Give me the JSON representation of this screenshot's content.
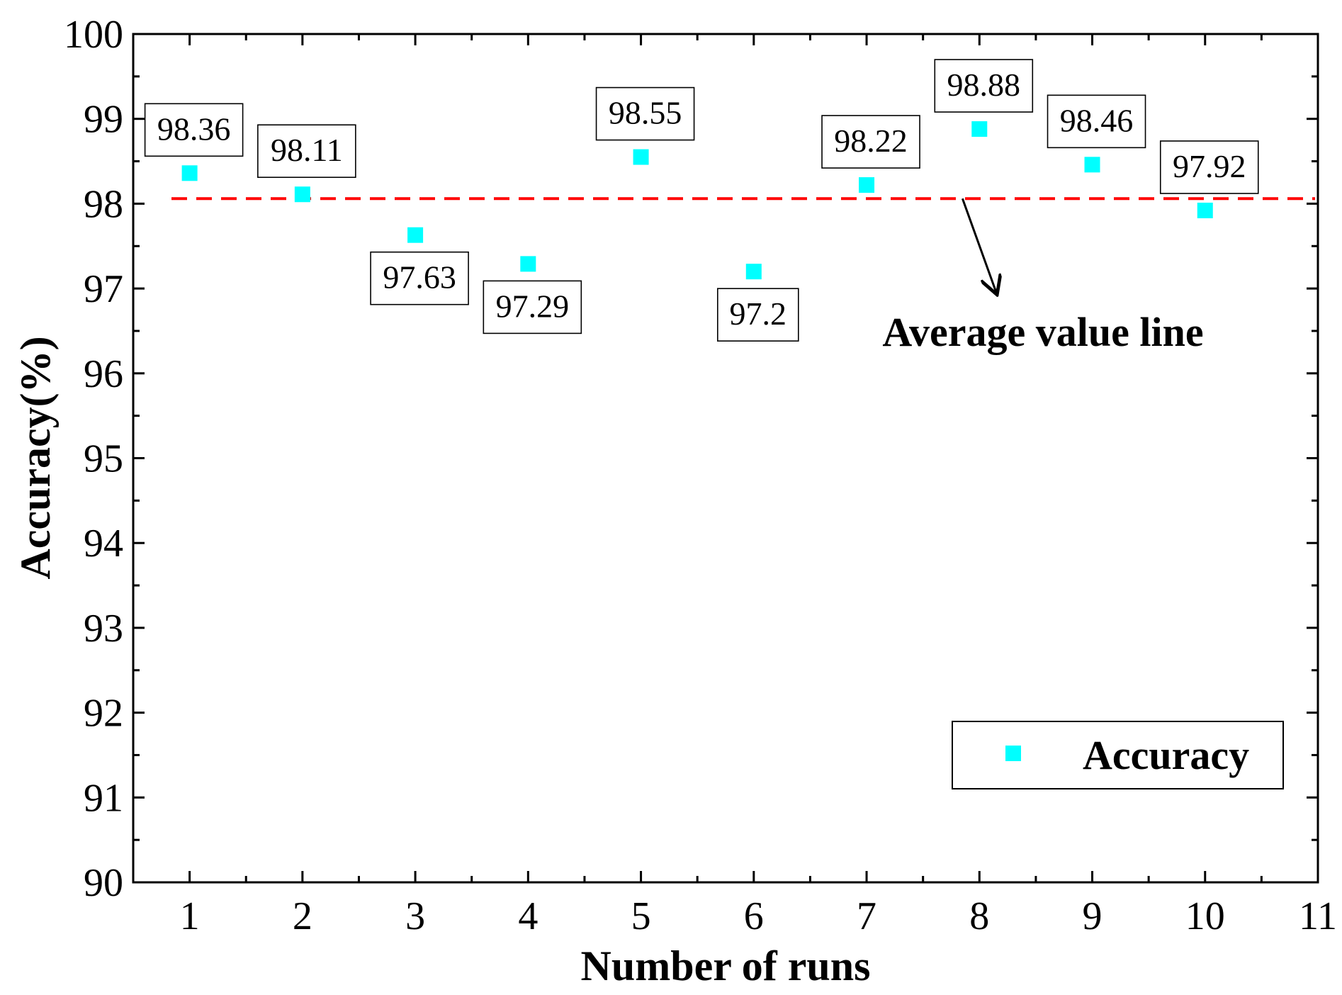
{
  "chart_data": {
    "type": "scatter",
    "title": "",
    "xlabel": "Number of runs",
    "ylabel": "Accuracy(%)",
    "xlim": [
      0.5,
      11
    ],
    "ylim": [
      90,
      100
    ],
    "xticks": [
      1,
      2,
      3,
      4,
      5,
      6,
      7,
      8,
      9,
      10,
      11
    ],
    "yticks": [
      90,
      91,
      92,
      93,
      94,
      95,
      96,
      97,
      98,
      99,
      100
    ],
    "grid": false,
    "series": [
      {
        "name": "Accuracy",
        "color": "#00FFFF",
        "marker": "square",
        "x": [
          1,
          2,
          3,
          4,
          5,
          6,
          7,
          8,
          9,
          10
        ],
        "y": [
          98.36,
          98.11,
          97.63,
          97.29,
          98.55,
          97.2,
          98.22,
          98.88,
          98.46,
          97.92
        ],
        "labels": [
          "98.36",
          "98.11",
          "97.63",
          "97.29",
          "98.55",
          "97.2",
          "98.22",
          "98.88",
          "98.46",
          "97.92"
        ],
        "label_positions": [
          "above",
          "above",
          "below",
          "below",
          "above",
          "below",
          "above",
          "above",
          "above",
          "above"
        ]
      }
    ],
    "reference_line": {
      "name": "Average value line",
      "y": 98.06,
      "color": "#FF0000",
      "style": "dashed"
    },
    "annotation": {
      "text": "Average value line",
      "arrow_from_x": 7.85,
      "arrow_from_y": 98.06,
      "arrow_to_x": 8.15,
      "arrow_to_y": 96.95
    },
    "legend": {
      "position": "bottom-right",
      "entries": [
        "Accuracy"
      ]
    }
  }
}
